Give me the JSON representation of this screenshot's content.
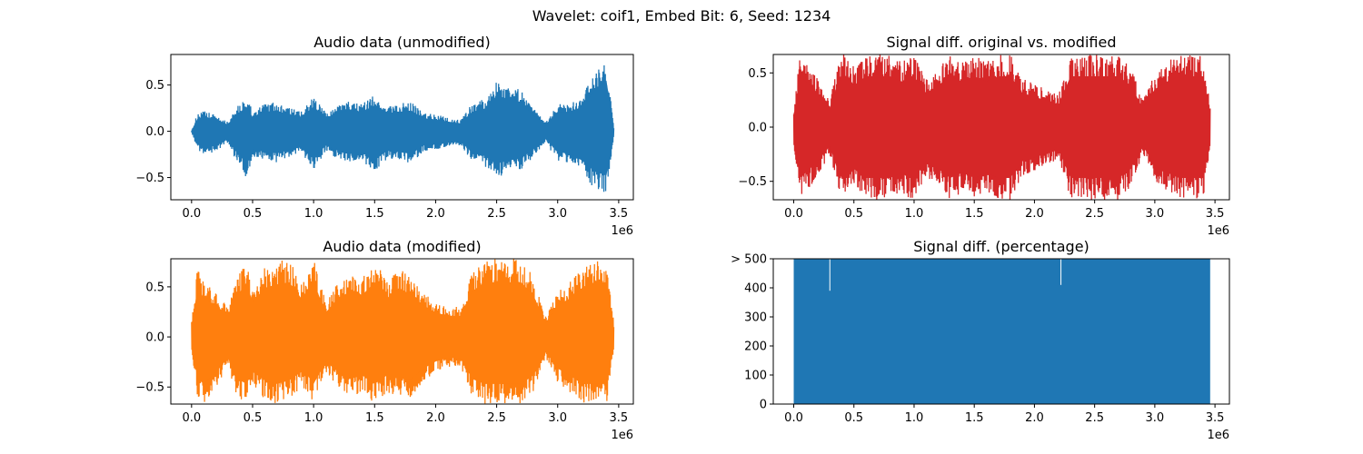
{
  "figure_title": "Wavelet: coif1, Embed Bit: 6, Seed: 1234",
  "chart_data": [
    {
      "type": "line",
      "title": "Audio data (unmodified)",
      "xlabel": "",
      "ylabel": "",
      "x_offset_label": "1e6",
      "xlim": [
        -0.17,
        3.62
      ],
      "ylim": [
        -0.74,
        0.83
      ],
      "xticks": [
        0.0,
        0.5,
        1.0,
        1.5,
        2.0,
        2.5,
        3.0,
        3.5
      ],
      "xtick_labels": [
        "0.0",
        "0.5",
        "1.0",
        "1.5",
        "2.0",
        "2.5",
        "3.0",
        "3.5"
      ],
      "yticks": [
        -0.5,
        0.0,
        0.5
      ],
      "ytick_labels": [
        "−0.5",
        "0.0",
        "0.5"
      ],
      "color": "#1f77b4",
      "grid": false,
      "x_range": [
        0.0,
        3.46
      ],
      "envelope": {
        "x": [
          0.0,
          0.05,
          0.1,
          0.2,
          0.3,
          0.35,
          0.4,
          0.45,
          0.5,
          0.6,
          0.7,
          0.8,
          0.9,
          0.95,
          1.0,
          1.1,
          1.2,
          1.3,
          1.4,
          1.5,
          1.6,
          1.7,
          1.8,
          1.9,
          2.0,
          2.1,
          2.2,
          2.3,
          2.4,
          2.5,
          2.6,
          2.7,
          2.8,
          2.9,
          3.0,
          3.1,
          3.2,
          3.3,
          3.4,
          3.46
        ],
        "upper": [
          0.01,
          0.2,
          0.22,
          0.18,
          0.1,
          0.25,
          0.3,
          0.38,
          0.22,
          0.3,
          0.32,
          0.25,
          0.22,
          0.3,
          0.38,
          0.2,
          0.28,
          0.33,
          0.3,
          0.4,
          0.28,
          0.3,
          0.32,
          0.2,
          0.18,
          0.15,
          0.12,
          0.3,
          0.35,
          0.55,
          0.5,
          0.45,
          0.25,
          0.1,
          0.3,
          0.3,
          0.38,
          0.62,
          0.78,
          0.05
        ],
        "lower": [
          -0.01,
          -0.2,
          -0.26,
          -0.22,
          -0.12,
          -0.28,
          -0.35,
          -0.55,
          -0.28,
          -0.32,
          -0.34,
          -0.28,
          -0.25,
          -0.35,
          -0.42,
          -0.22,
          -0.3,
          -0.35,
          -0.32,
          -0.45,
          -0.3,
          -0.32,
          -0.35,
          -0.22,
          -0.2,
          -0.18,
          -0.15,
          -0.33,
          -0.38,
          -0.5,
          -0.45,
          -0.42,
          -0.28,
          -0.12,
          -0.32,
          -0.35,
          -0.45,
          -0.62,
          -0.68,
          -0.05
        ]
      }
    },
    {
      "type": "line",
      "title": "Signal diff. original vs. modified",
      "xlabel": "",
      "ylabel": "",
      "x_offset_label": "1e6",
      "xlim": [
        -0.17,
        3.62
      ],
      "ylim": [
        -0.67,
        0.67
      ],
      "xticks": [
        0.0,
        0.5,
        1.0,
        1.5,
        2.0,
        2.5,
        3.0,
        3.5
      ],
      "xtick_labels": [
        "0.0",
        "0.5",
        "1.0",
        "1.5",
        "2.0",
        "2.5",
        "3.0",
        "3.5"
      ],
      "yticks": [
        -0.5,
        0.0,
        0.5
      ],
      "ytick_labels": [
        "−0.5",
        "0.0",
        "0.5"
      ],
      "color": "#d62728",
      "grid": false,
      "x_range": [
        0.0,
        3.46
      ],
      "envelope": {
        "x": [
          0.0,
          0.05,
          0.1,
          0.2,
          0.3,
          0.35,
          0.4,
          0.45,
          0.5,
          0.6,
          0.7,
          0.8,
          0.9,
          0.95,
          1.0,
          1.1,
          1.2,
          1.3,
          1.4,
          1.5,
          1.6,
          1.7,
          1.8,
          1.9,
          2.0,
          2.1,
          2.2,
          2.3,
          2.4,
          2.5,
          2.6,
          2.7,
          2.8,
          2.9,
          3.0,
          3.1,
          3.2,
          3.3,
          3.4,
          3.46
        ],
        "upper": [
          0.15,
          0.67,
          0.6,
          0.45,
          0.25,
          0.5,
          0.67,
          0.67,
          0.55,
          0.67,
          0.67,
          0.67,
          0.6,
          0.67,
          0.67,
          0.45,
          0.55,
          0.67,
          0.6,
          0.67,
          0.6,
          0.67,
          0.67,
          0.45,
          0.4,
          0.35,
          0.3,
          0.67,
          0.67,
          0.67,
          0.67,
          0.67,
          0.55,
          0.25,
          0.5,
          0.6,
          0.67,
          0.67,
          0.67,
          0.2
        ],
        "lower": [
          -0.15,
          -0.67,
          -0.6,
          -0.45,
          -0.25,
          -0.5,
          -0.67,
          -0.67,
          -0.55,
          -0.67,
          -0.67,
          -0.67,
          -0.6,
          -0.67,
          -0.67,
          -0.45,
          -0.55,
          -0.67,
          -0.6,
          -0.67,
          -0.6,
          -0.67,
          -0.67,
          -0.45,
          -0.4,
          -0.35,
          -0.3,
          -0.67,
          -0.67,
          -0.67,
          -0.67,
          -0.67,
          -0.55,
          -0.25,
          -0.5,
          -0.6,
          -0.67,
          -0.67,
          -0.67,
          -0.2
        ]
      }
    },
    {
      "type": "line",
      "title": "Audio data (modified)",
      "xlabel": "",
      "ylabel": "",
      "x_offset_label": "1e6",
      "xlim": [
        -0.17,
        3.62
      ],
      "ylim": [
        -0.67,
        0.78
      ],
      "xticks": [
        0.0,
        0.5,
        1.0,
        1.5,
        2.0,
        2.5,
        3.0,
        3.5
      ],
      "xtick_labels": [
        "0.0",
        "0.5",
        "1.0",
        "1.5",
        "2.0",
        "2.5",
        "3.0",
        "3.5"
      ],
      "yticks": [
        -0.5,
        0.0,
        0.5
      ],
      "ytick_labels": [
        "−0.5",
        "0.0",
        "0.5"
      ],
      "color": "#ff7f0e",
      "grid": false,
      "x_range": [
        0.0,
        3.46
      ],
      "envelope": {
        "x": [
          0.0,
          0.05,
          0.1,
          0.2,
          0.3,
          0.35,
          0.4,
          0.45,
          0.5,
          0.6,
          0.7,
          0.8,
          0.9,
          0.95,
          1.0,
          1.1,
          1.2,
          1.3,
          1.4,
          1.5,
          1.6,
          1.7,
          1.8,
          1.9,
          2.0,
          2.1,
          2.2,
          2.3,
          2.4,
          2.5,
          2.6,
          2.7,
          2.8,
          2.9,
          3.0,
          3.1,
          3.2,
          3.3,
          3.4,
          3.46
        ],
        "upper": [
          0.15,
          0.72,
          0.55,
          0.45,
          0.3,
          0.5,
          0.65,
          0.78,
          0.5,
          0.7,
          0.75,
          0.78,
          0.55,
          0.6,
          0.78,
          0.35,
          0.55,
          0.65,
          0.6,
          0.78,
          0.55,
          0.7,
          0.6,
          0.45,
          0.35,
          0.3,
          0.3,
          0.65,
          0.78,
          0.78,
          0.78,
          0.78,
          0.6,
          0.2,
          0.45,
          0.55,
          0.7,
          0.78,
          0.78,
          0.15
        ],
        "lower": [
          -0.15,
          -0.6,
          -0.67,
          -0.5,
          -0.3,
          -0.55,
          -0.62,
          -0.67,
          -0.5,
          -0.62,
          -0.67,
          -0.62,
          -0.5,
          -0.55,
          -0.67,
          -0.35,
          -0.5,
          -0.6,
          -0.55,
          -0.67,
          -0.55,
          -0.6,
          -0.6,
          -0.45,
          -0.35,
          -0.3,
          -0.3,
          -0.6,
          -0.67,
          -0.67,
          -0.67,
          -0.67,
          -0.55,
          -0.2,
          -0.45,
          -0.55,
          -0.67,
          -0.67,
          -0.67,
          -0.15
        ]
      }
    },
    {
      "type": "area",
      "title": "Signal diff. (percentage)",
      "xlabel": "",
      "ylabel": "",
      "x_offset_label": "1e6",
      "xlim": [
        -0.17,
        3.62
      ],
      "ylim": [
        0,
        500
      ],
      "xticks": [
        0.0,
        0.5,
        1.0,
        1.5,
        2.0,
        2.5,
        3.0,
        3.5
      ],
      "xtick_labels": [
        "0.0",
        "0.5",
        "1.0",
        "1.5",
        "2.0",
        "2.5",
        "3.0",
        "3.5"
      ],
      "yticks": [
        0,
        100,
        200,
        300,
        400,
        500
      ],
      "ytick_labels": [
        "0",
        "100",
        "200",
        "300",
        "400",
        "> 500"
      ],
      "color": "#1f77b4",
      "grid": false,
      "x_range": [
        0.0,
        3.46
      ],
      "fill_to": 500,
      "gaps": [
        {
          "x": 0.3,
          "y_low": 390
        },
        {
          "x": 2.22,
          "y_low": 410
        }
      ]
    }
  ]
}
